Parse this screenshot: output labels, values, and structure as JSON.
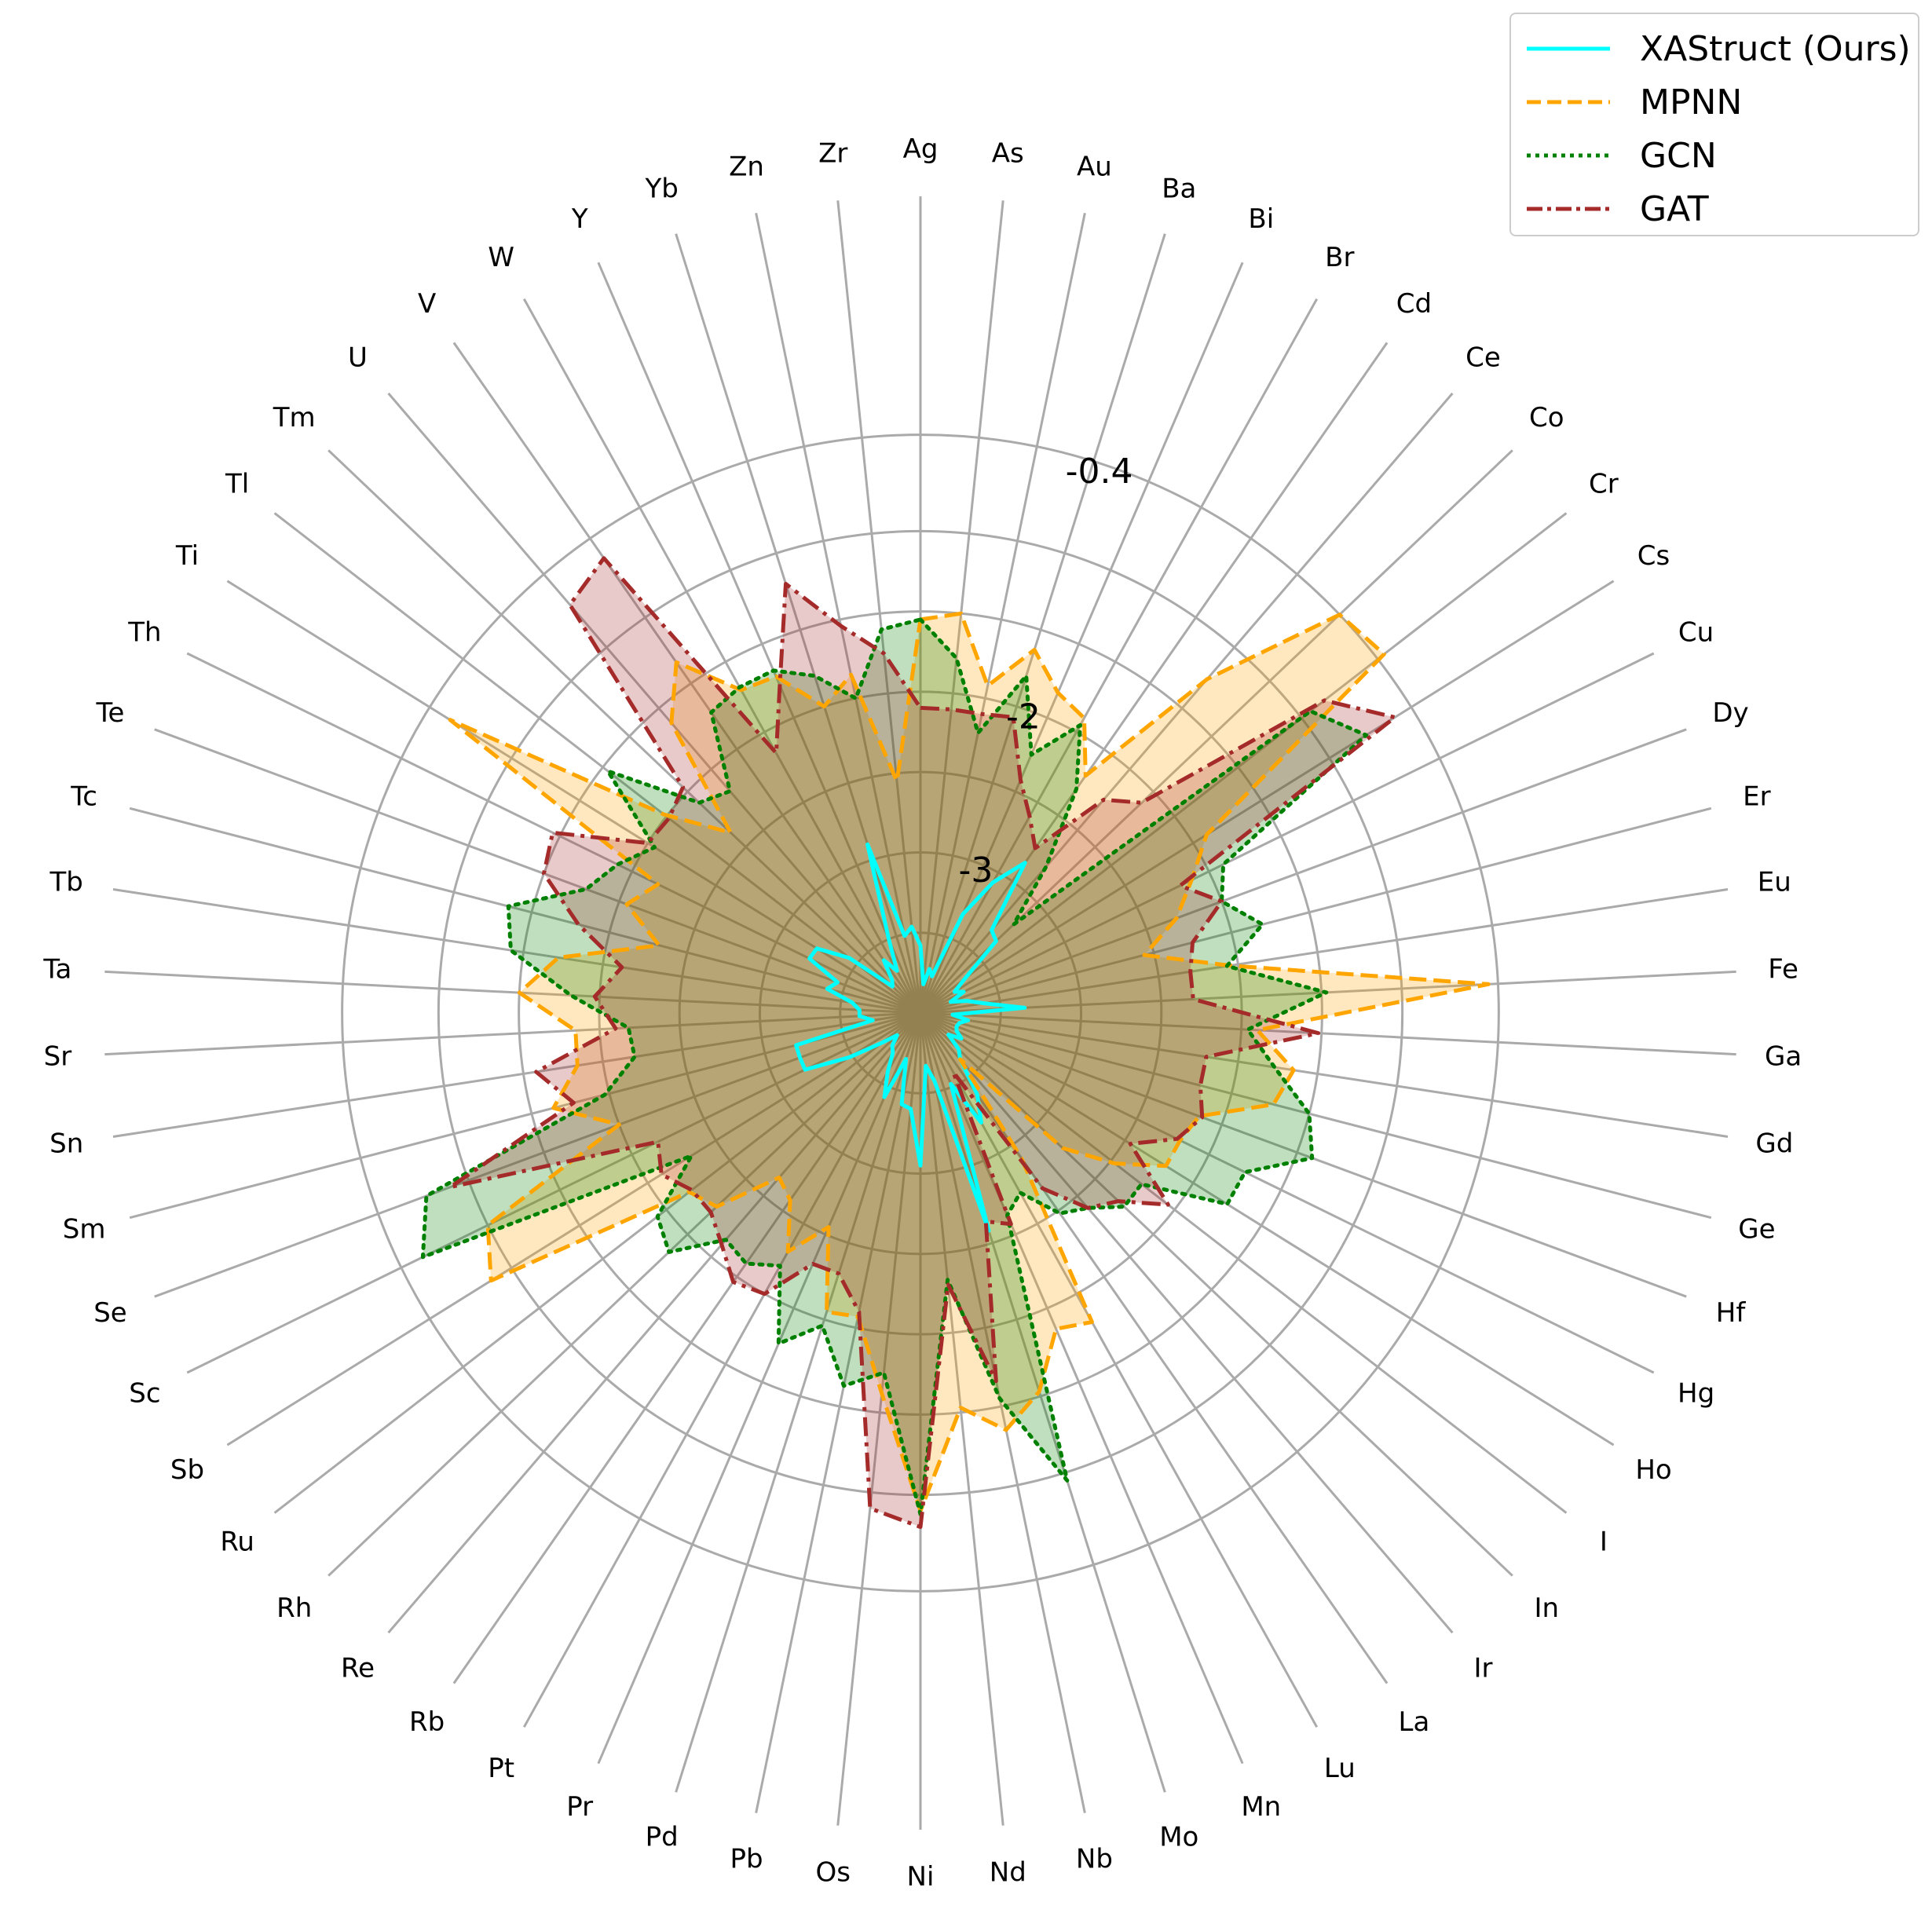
{
  "chart_data": {
    "type": "radar",
    "categories": [
      "Ag",
      "As",
      "Au",
      "Ba",
      "Bi",
      "Br",
      "Cd",
      "Ce",
      "Co",
      "Cr",
      "Cs",
      "Cu",
      "Dy",
      "Er",
      "Eu",
      "Fe",
      "Ga",
      "Gd",
      "Ge",
      "Hf",
      "Hg",
      "Ho",
      "I",
      "In",
      "Ir",
      "La",
      "Lu",
      "Mn",
      "Mo",
      "Nb",
      "Nd",
      "Ni",
      "Os",
      "Pb",
      "Pd",
      "Pr",
      "Pt",
      "Rb",
      "Re",
      "Rh",
      "Ru",
      "Sb",
      "Sc",
      "Se",
      "Sm",
      "Sn",
      "Sr",
      "Ta",
      "Tb",
      "Tc",
      "Te",
      "Th",
      "Ti",
      "Tl",
      "Tm",
      "U",
      "V",
      "W",
      "Y",
      "Yb",
      "Zn",
      "Zr"
    ],
    "radial_ticks": [
      "-3",
      "-2",
      "-0.4"
    ],
    "radial_range": [
      -4,
      0.4
    ],
    "grid": true,
    "legend_position": "top-right",
    "series": [
      {
        "name": "XAStruct (Ours)",
        "color": "#00ffff",
        "style": "solid",
        "fill": false,
        "values": [
          -3.58,
          -3.82,
          -3.72,
          -3.76,
          -3.33,
          -3.07,
          -2.86,
          -3.32,
          -3.35,
          -3.65,
          -3.75,
          -3.7,
          -3.8,
          -3.7,
          -3.6,
          -3.35,
          -3.8,
          -3.7,
          -3.75,
          -3.76,
          -3.75,
          -3.7,
          -3.78,
          -3.67,
          -3.62,
          -3.38,
          -3.22,
          -3.52,
          -2.58,
          -3.57,
          -3.67,
          -3.05,
          -3.4,
          -3.42,
          -3.7,
          -3.43,
          -3.58,
          -3.7,
          -3.73,
          -3.8,
          -3.7,
          -3.48,
          -3.2,
          -3.2,
          -3.2,
          -3.7,
          -3.62,
          -3.62,
          -3.57,
          -3.4,
          -3.45,
          -3.23,
          -3.24,
          -3.44,
          -3.76,
          -3.73,
          -3.6,
          -3.7,
          -3.5,
          -2.9,
          -3.51,
          -3.46
        ]
      },
      {
        "name": "MPNN",
        "color": "#ffa500",
        "style": "dashed",
        "fill": true,
        "values": [
          -1.55,
          -1.5,
          -1.92,
          -1.63,
          -1.83,
          -1.9,
          -2.2,
          -1.26,
          -0.4,
          -0.35,
          -1.9,
          -2.12,
          -2.3,
          -2.56,
          -2.05,
          -0.46,
          -1.9,
          -1.65,
          -1.73,
          -2.15,
          -2.2,
          -2.2,
          -2.47,
          -2.78,
          -3.62,
          -2.9,
          -1.8,
          -1.86,
          -1.53,
          -1.35,
          -1.53,
          -0.9,
          -1.62,
          -2.07,
          -2.05,
          -2.55,
          -2.3,
          -2.58,
          -2.65,
          -2.25,
          -2.18,
          -0.85,
          -1.0,
          -2.0,
          -1.64,
          -1.84,
          -1.85,
          -1.5,
          -1.72,
          -2.32,
          -2.05,
          -2.18,
          -0.55,
          -1.98,
          -2.37,
          -1.62,
          -1.34,
          -1.7,
          -1.72,
          -2.0,
          -1.85,
          -2.55
        ]
      },
      {
        "name": "GCN",
        "color": "#008000",
        "style": "dotted",
        "fill": true,
        "values": [
          -1.55,
          -1.78,
          -2.22,
          -1.8,
          -2.25,
          -1.95,
          -2.3,
          -2.8,
          -3.2,
          -0.93,
          -0.73,
          -1.9,
          -2.0,
          -1.8,
          -2.07,
          -1.47,
          -1.96,
          -1.77,
          -1.5,
          -1.4,
          -1.75,
          -1.75,
          -2.26,
          -2.25,
          -2.4,
          -2.48,
          -2.72,
          -2.63,
          -0.95,
          -1.55,
          -2.33,
          -0.88,
          -1.75,
          -1.63,
          -1.96,
          -1.76,
          -2.2,
          -2.1,
          -2.14,
          -1.84,
          -1.93,
          -2.32,
          -0.55,
          -0.72,
          -1.97,
          -2.2,
          -2.18,
          -1.82,
          -1.42,
          -1.35,
          -1.78,
          -1.9,
          -2.05,
          -1.54,
          -2.1,
          -2.18,
          -1.72,
          -1.68,
          -1.68,
          -1.8,
          -2.0,
          -1.6
        ]
      },
      {
        "name": "GAT",
        "color": "#a52a2a",
        "style": "dashdot",
        "fill": true,
        "values": [
          -2.1,
          -2.1,
          -2.1,
          -2.07,
          -2.42,
          -2.6,
          -2.75,
          -2.25,
          -2.1,
          -0.82,
          -0.52,
          -2.2,
          -2.0,
          -2.25,
          -2.3,
          -2.3,
          -1.52,
          -2.2,
          -2.2,
          -2.13,
          -2.22,
          -2.46,
          -2.05,
          -2.3,
          -2.4,
          -2.67,
          -3.58,
          -2.57,
          -2.64,
          -1.66,
          -2.3,
          -0.8,
          -0.9,
          -2.1,
          -2.3,
          -2.3,
          -2.0,
          -1.96,
          -2.1,
          -2.2,
          -2.2,
          -2.1,
          -2.18,
          -0.88,
          -1.77,
          -1.58,
          -2.1,
          -1.97,
          -2.12,
          -1.8,
          -1.5,
          -1.45,
          -2.0,
          -2.02,
          -1.96,
          -0.65,
          -0.55,
          -2.15,
          -1.78,
          -1.2,
          -1.54,
          -1.75
        ]
      }
    ]
  }
}
